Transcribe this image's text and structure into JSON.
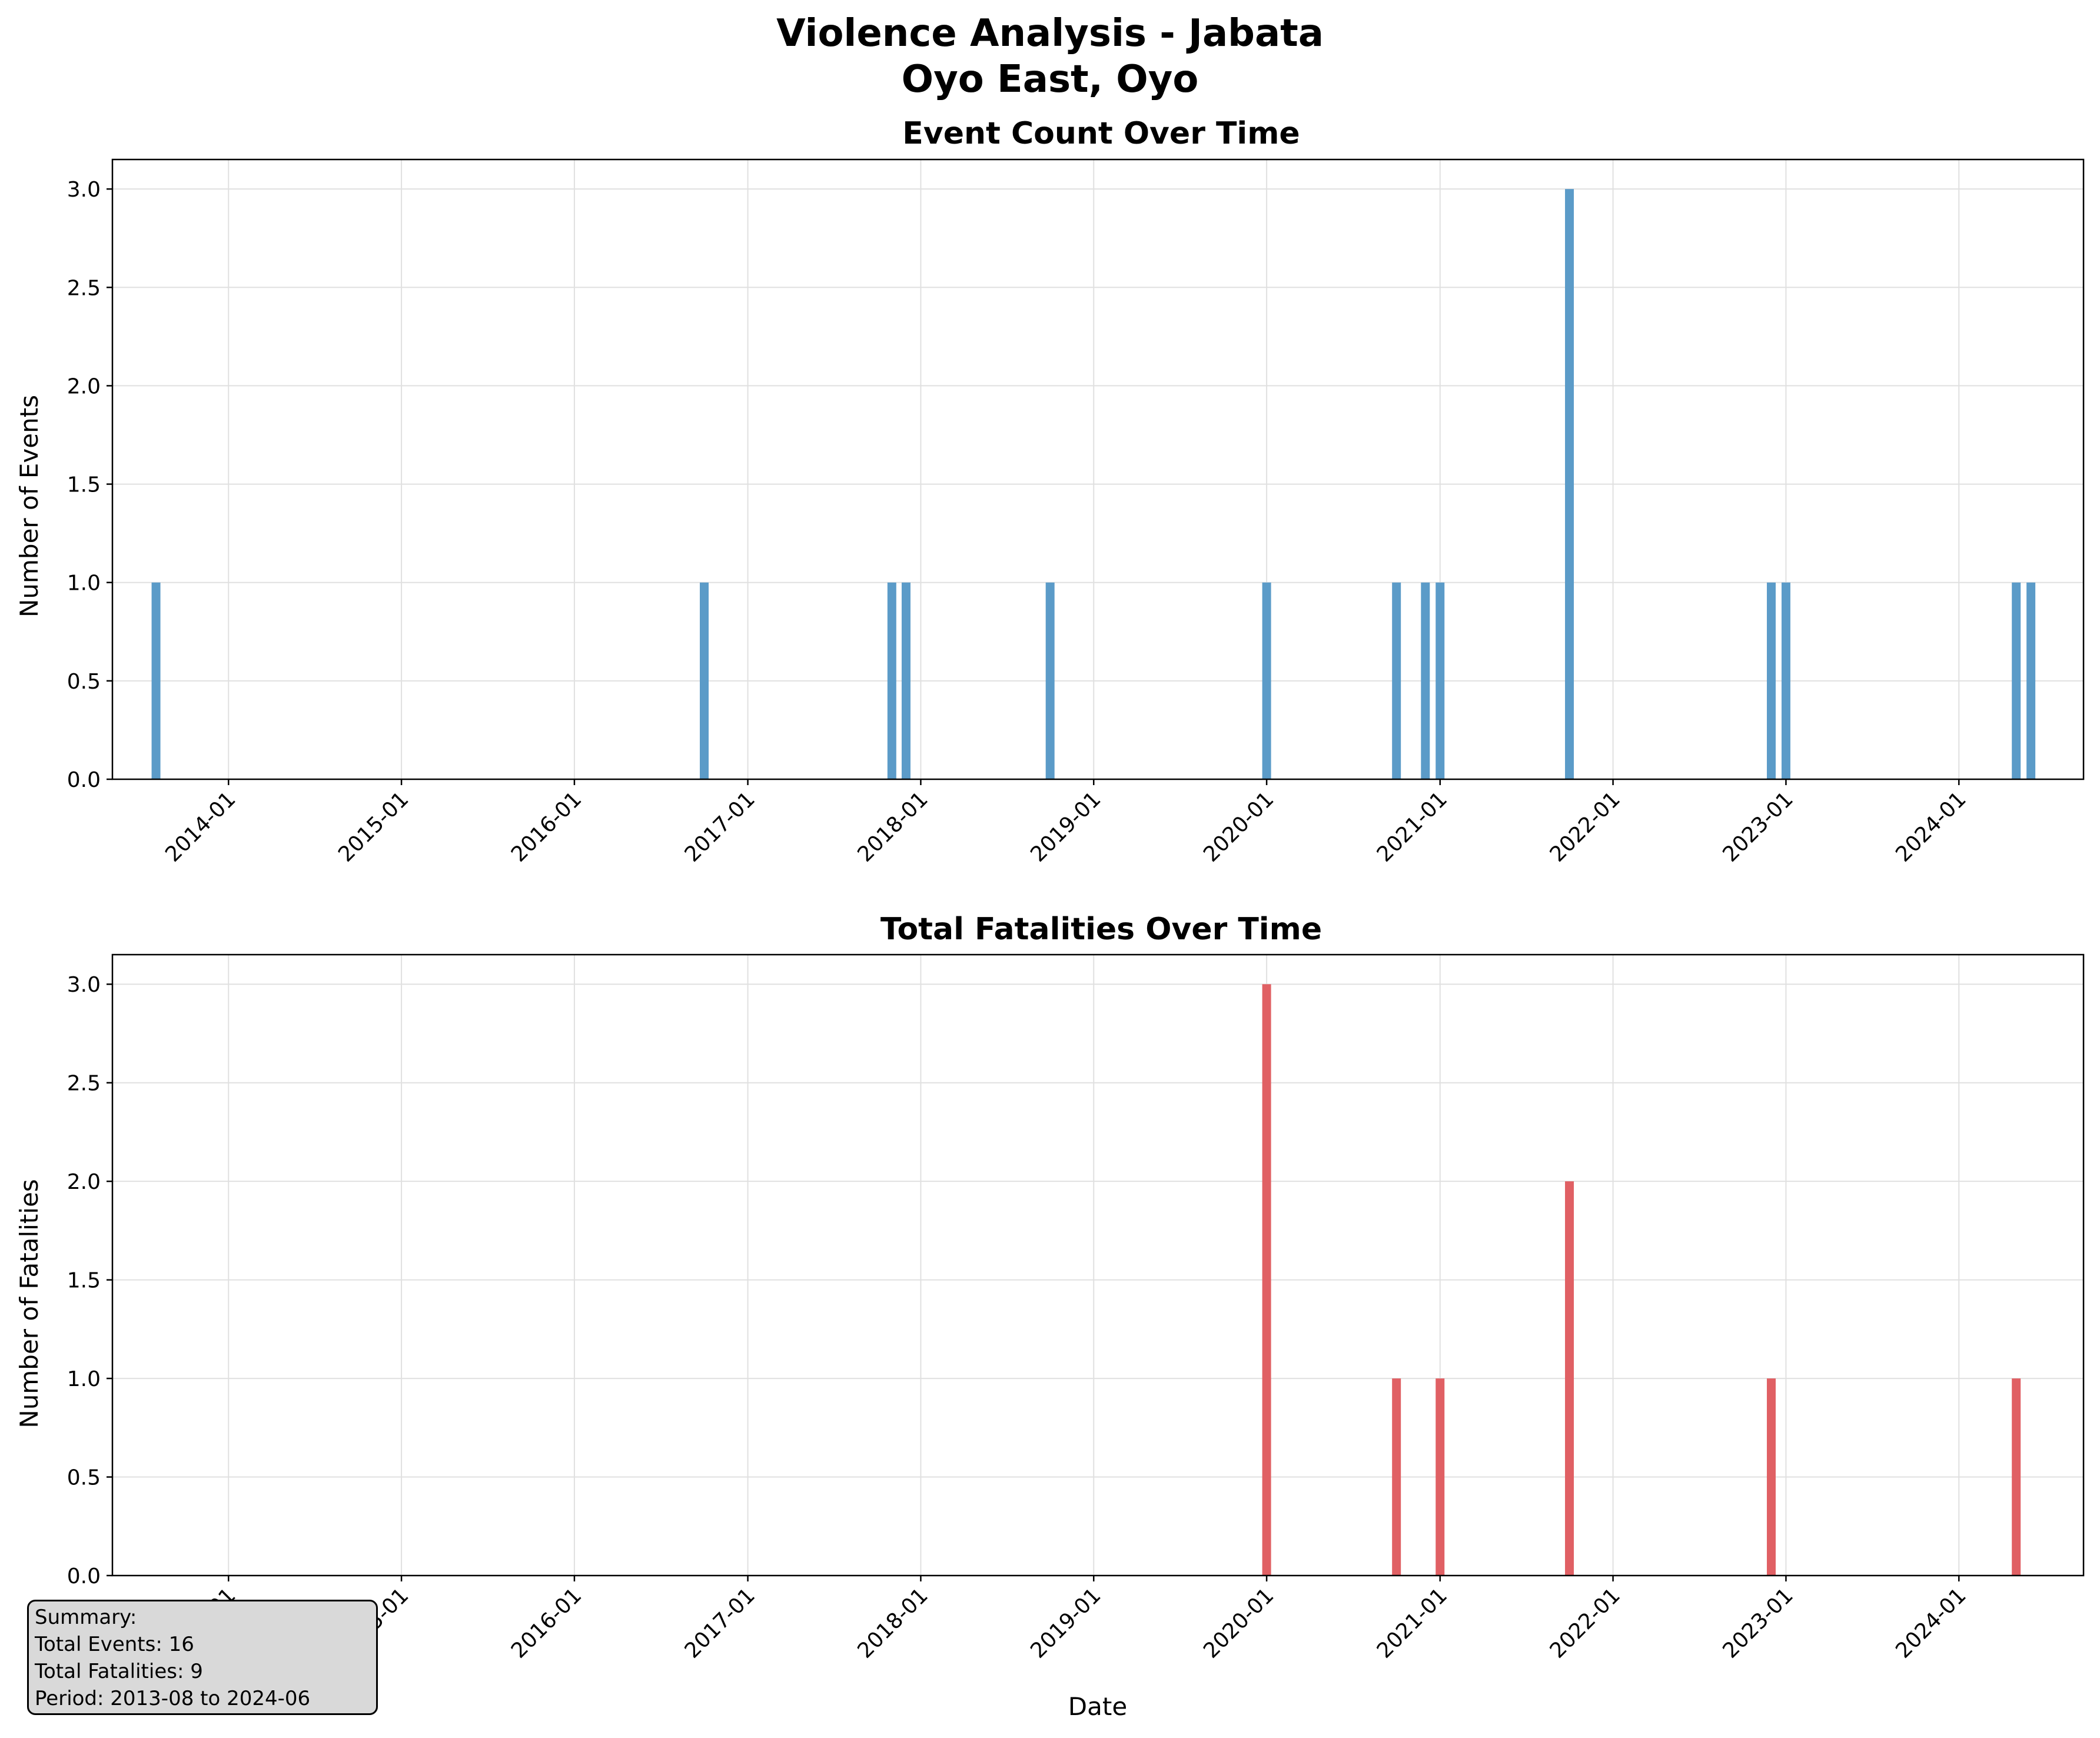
{
  "figure": {
    "title_line1": "Violence Analysis - Jabata",
    "title_line2": "Oyo East, Oyo"
  },
  "chart_data": [
    {
      "type": "bar",
      "title": "Event Count Over Time",
      "xlabel": "",
      "ylabel": "Number of Events",
      "x_axis_type": "date",
      "xlim": [
        "2013-05-01",
        "2024-09-20"
      ],
      "ylim": [
        0,
        3.15
      ],
      "x_ticks": [
        "2014-01",
        "2015-01",
        "2016-01",
        "2017-01",
        "2018-01",
        "2019-01",
        "2020-01",
        "2021-01",
        "2022-01",
        "2023-01",
        "2024-01"
      ],
      "y_ticks": [
        "0.0",
        "0.5",
        "1.0",
        "1.5",
        "2.0",
        "2.5",
        "3.0"
      ],
      "grid": true,
      "color": "#5b9bc8",
      "dates": [
        "2013-08",
        "2016-10",
        "2017-11",
        "2017-12",
        "2018-10",
        "2020-01",
        "2020-10",
        "2020-12",
        "2021-01",
        "2021-10",
        "2022-12",
        "2023-01",
        "2024-05",
        "2024-06"
      ],
      "values": [
        1,
        1,
        1,
        1,
        1,
        1,
        1,
        1,
        1,
        3,
        1,
        1,
        1,
        1
      ]
    },
    {
      "type": "bar",
      "title": "Total Fatalities Over Time",
      "xlabel": "Date",
      "ylabel": "Number of Fatalities",
      "x_axis_type": "date",
      "xlim": [
        "2013-05-01",
        "2024-09-20"
      ],
      "ylim": [
        0,
        3.15
      ],
      "x_ticks": [
        "2014-01",
        "2015-01",
        "2016-01",
        "2017-01",
        "2018-01",
        "2019-01",
        "2020-01",
        "2021-01",
        "2022-01",
        "2023-01",
        "2024-01"
      ],
      "y_ticks": [
        "0.0",
        "0.5",
        "1.0",
        "1.5",
        "2.0",
        "2.5",
        "3.0"
      ],
      "grid": true,
      "color": "#e06064",
      "dates": [
        "2020-01",
        "2020-10",
        "2021-01",
        "2021-10",
        "2022-12",
        "2024-05"
      ],
      "values": [
        3,
        1,
        1,
        2,
        1,
        1
      ]
    }
  ],
  "summary": {
    "heading": "Summary:",
    "total_events": "Total Events: 16",
    "total_fatalities": "Total Fatalities: 9",
    "period": "Period: 2013-08 to 2024-06"
  }
}
